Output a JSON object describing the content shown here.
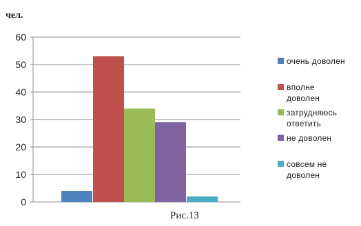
{
  "chart_data": {
    "type": "bar",
    "unit_label": "чел.",
    "caption": "Рис.13",
    "ylim": [
      0,
      60
    ],
    "yticks": [
      "0",
      "10",
      "20",
      "30",
      "40",
      "50",
      "60"
    ],
    "grid": true,
    "legend_position": "right",
    "series": [
      {
        "name": "очень доволен",
        "value": 4,
        "color": "#4f81bd"
      },
      {
        "name": "вполне доволен",
        "value": 53,
        "color": "#c0504d"
      },
      {
        "name": "затрудняюсь ответить",
        "value": 34,
        "color": "#9bbb59"
      },
      {
        "name": "не доволен",
        "value": 29,
        "color": "#8064a2"
      },
      {
        "name": "совсем не доволен",
        "value": 2,
        "color": "#4bacc6"
      }
    ]
  }
}
